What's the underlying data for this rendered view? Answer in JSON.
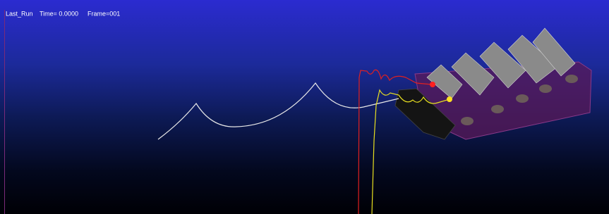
{
  "viewport": {
    "run_name": "Last_Run",
    "time": "Time= 0.0000",
    "frame": "Frame=001"
  }
}
